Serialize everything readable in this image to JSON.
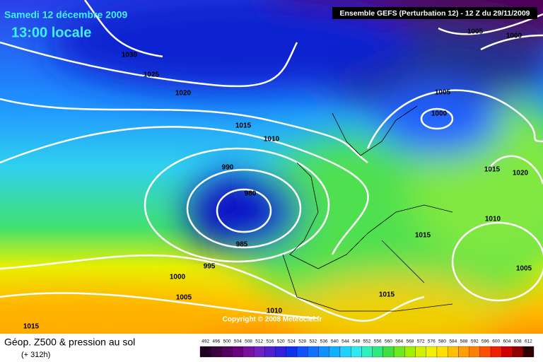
{
  "header": {
    "date": "Samedi 12 décembre 2009",
    "time": "13:00 locale",
    "run": "Ensemble GEFS (Perturbation 12)  -  12 Z du 29/11/2009"
  },
  "map": {
    "isobar_labels": [
      "1030",
      "1025",
      "1020",
      "1015",
      "1010",
      "990",
      "980",
      "985",
      "995",
      "1000",
      "1005",
      "1010",
      "1015",
      "1015",
      "1015",
      "1010",
      "1005",
      "1015",
      "1020",
      "1005",
      "1000",
      "1005",
      "1000"
    ],
    "copyright": "Copyright © 2008 Meteociel.fr"
  },
  "footer": {
    "title": "Géop. Z500 & pression au sol",
    "lead": "(+ 312h)",
    "scale": [
      "492",
      "496",
      "500",
      "504",
      "508",
      "512",
      "516",
      "520",
      "524",
      "528",
      "532",
      "536",
      "540",
      "544",
      "548",
      "552",
      "556",
      "560",
      "564",
      "568",
      "572",
      "576",
      "580",
      "584",
      "588",
      "592",
      "596",
      "600",
      "604",
      "608",
      "612"
    ]
  }
}
